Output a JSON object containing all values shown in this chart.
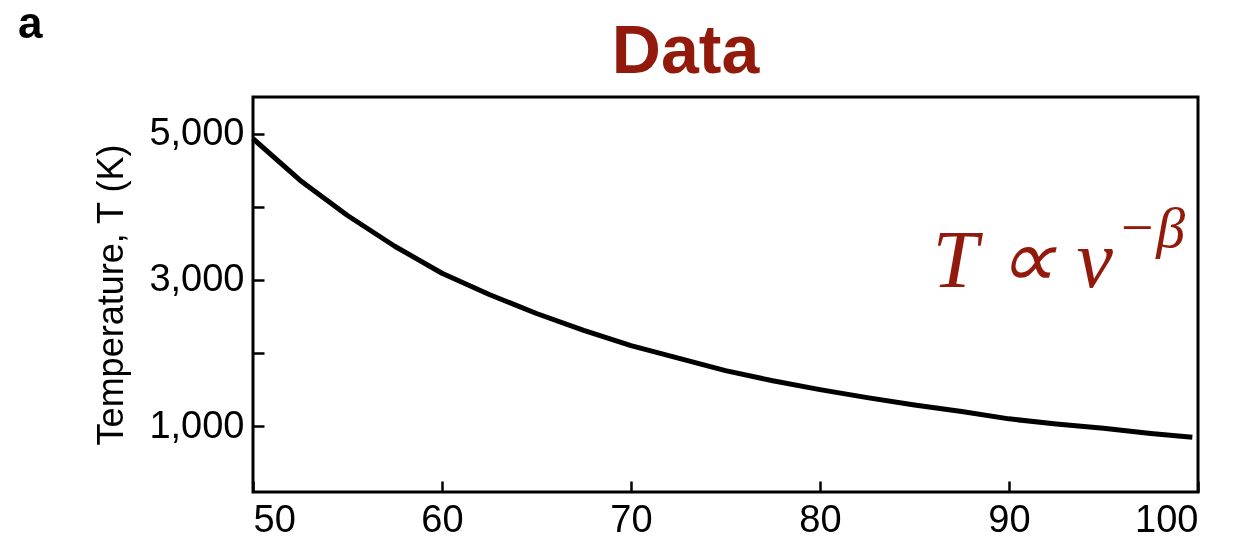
{
  "chart_data": {
    "type": "line",
    "title": "Data",
    "ylabel": "Temperature, T (K)",
    "annotations": [
      "a",
      "T ∝ ν$^{−β}$"
    ],
    "x": [
      50,
      52.5,
      55,
      57.5,
      60,
      62.5,
      65,
      67.5,
      70,
      72.5,
      75,
      77.5,
      80,
      82.5,
      85,
      87.5,
      90,
      92.5,
      95,
      97.5,
      99.7
    ],
    "series": [
      {
        "color": "#000000",
        "values": [
          4930,
          4360,
          3880,
          3460,
          3090,
          2800,
          2540,
          2310,
          2100,
          1930,
          1760,
          1620,
          1500,
          1390,
          1290,
          1200,
          1100,
          1030,
          970,
          900,
          850
        ]
      }
    ],
    "xlim": [
      50,
      100
    ],
    "xticks": [
      50,
      60,
      70,
      80,
      90,
      100
    ],
    "ylim": [
      100,
      5500
    ],
    "yticks": [
      {
        "value": 1000,
        "label": "1,000"
      },
      {
        "value": 2000,
        "label": null
      },
      {
        "value": 3000,
        "label": "3,000"
      },
      {
        "value": 4000,
        "label": null
      },
      {
        "value": 5000,
        "label": "5,000"
      }
    ],
    "marker": "none"
  }
}
